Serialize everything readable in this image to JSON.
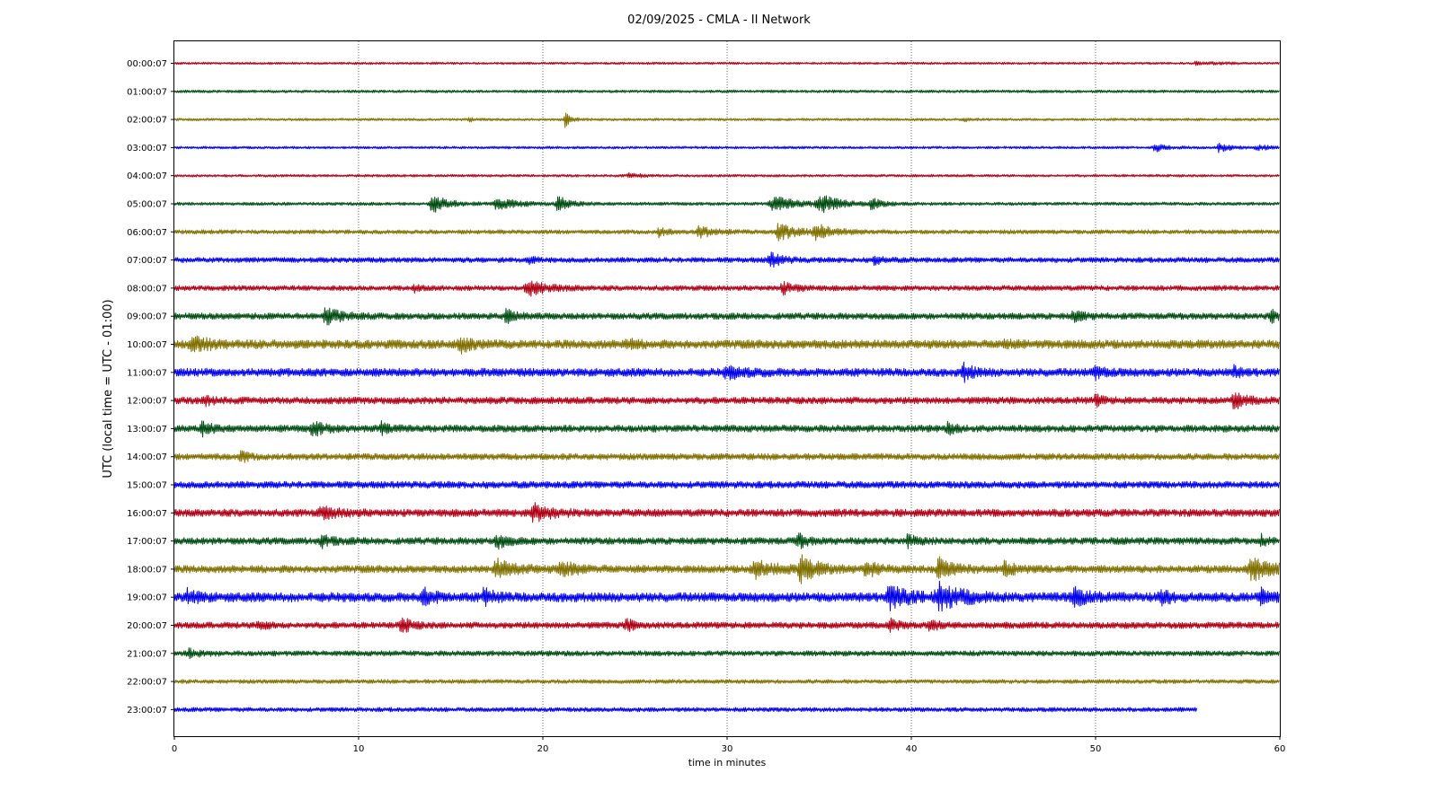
{
  "chart_data": {
    "type": "line",
    "title": "02/09/2025 - CMLA - II Network",
    "xlabel": "time in minutes",
    "ylabel": "UTC (local time = UTC - 01:00)",
    "xlim": [
      0,
      60
    ],
    "x_ticks": [
      0,
      10,
      20,
      30,
      40,
      50,
      60
    ],
    "vertical_gridlines_at": [
      10,
      20,
      30,
      40,
      50
    ],
    "grid_style": "dotted vertical",
    "trace_colors": [
      "#b00016",
      "#004d12",
      "#807000",
      "#0000ee"
    ],
    "rows": [
      {
        "label": "00:00:07",
        "end": 60,
        "noise": 0.2,
        "events": [
          {
            "t": 55.5,
            "amp": 0.25,
            "dur": 1.0
          }
        ]
      },
      {
        "label": "01:00:07",
        "end": 60,
        "noise": 0.24,
        "events": []
      },
      {
        "label": "02:00:07",
        "end": 60,
        "noise": 0.22,
        "events": [
          {
            "t": 21.2,
            "amp": 1.3,
            "dur": 0.3
          },
          {
            "t": 16.0,
            "amp": 0.3,
            "dur": 0.3
          },
          {
            "t": 42.8,
            "amp": 0.3,
            "dur": 0.3
          }
        ]
      },
      {
        "label": "03:00:07",
        "end": 60,
        "noise": 0.22,
        "events": [
          {
            "t": 53.2,
            "amp": 0.65,
            "dur": 0.6
          },
          {
            "t": 56.7,
            "amp": 0.7,
            "dur": 0.6
          },
          {
            "t": 58.8,
            "amp": 0.35,
            "dur": 0.8
          }
        ]
      },
      {
        "label": "04:00:07",
        "end": 60,
        "noise": 0.22,
        "events": [
          {
            "t": 24.7,
            "amp": 0.35,
            "dur": 0.7
          }
        ]
      },
      {
        "label": "05:00:07",
        "end": 60,
        "noise": 0.28,
        "events": [
          {
            "t": 14.0,
            "amp": 1.5,
            "dur": 0.8
          },
          {
            "t": 17.5,
            "amp": 1.0,
            "dur": 1.0
          },
          {
            "t": 20.8,
            "amp": 1.3,
            "dur": 0.6
          },
          {
            "t": 32.5,
            "amp": 1.2,
            "dur": 1.2
          },
          {
            "t": 35.0,
            "amp": 1.5,
            "dur": 1.0
          },
          {
            "t": 37.8,
            "amp": 0.9,
            "dur": 0.5
          }
        ]
      },
      {
        "label": "06:00:07",
        "end": 60,
        "noise": 0.36,
        "events": [
          {
            "t": 26.3,
            "amp": 0.8,
            "dur": 0.4
          },
          {
            "t": 28.5,
            "amp": 0.9,
            "dur": 0.8
          },
          {
            "t": 32.8,
            "amp": 1.6,
            "dur": 0.8
          },
          {
            "t": 34.8,
            "amp": 1.2,
            "dur": 0.9
          }
        ]
      },
      {
        "label": "07:00:07",
        "end": 60,
        "noise": 0.45,
        "events": [
          {
            "t": 19.2,
            "amp": 0.6,
            "dur": 0.4
          },
          {
            "t": 32.3,
            "amp": 1.2,
            "dur": 0.6
          },
          {
            "t": 38.0,
            "amp": 0.7,
            "dur": 0.4
          }
        ]
      },
      {
        "label": "08:00:07",
        "end": 60,
        "noise": 0.45,
        "events": [
          {
            "t": 19.2,
            "amp": 1.2,
            "dur": 1.0
          },
          {
            "t": 33.0,
            "amp": 0.9,
            "dur": 0.7
          },
          {
            "t": 13.0,
            "amp": 0.5,
            "dur": 0.3
          }
        ]
      },
      {
        "label": "09:00:07",
        "end": 60,
        "noise": 0.55,
        "events": [
          {
            "t": 8.2,
            "amp": 1.2,
            "dur": 0.8
          },
          {
            "t": 18.0,
            "amp": 1.0,
            "dur": 0.5
          },
          {
            "t": 48.8,
            "amp": 0.9,
            "dur": 0.5
          },
          {
            "t": 59.5,
            "amp": 1.2,
            "dur": 0.4
          }
        ]
      },
      {
        "label": "10:00:07",
        "end": 60,
        "noise": 0.75,
        "events": [
          {
            "t": 1.0,
            "amp": 0.9,
            "dur": 1.0
          },
          {
            "t": 15.5,
            "amp": 1.1,
            "dur": 0.6
          },
          {
            "t": 24.5,
            "amp": 0.9,
            "dur": 0.4
          },
          {
            "t": 45.0,
            "amp": 0.7,
            "dur": 0.3
          }
        ]
      },
      {
        "label": "11:00:07",
        "end": 60,
        "noise": 0.7,
        "events": [
          {
            "t": 42.8,
            "amp": 1.3,
            "dur": 0.5
          },
          {
            "t": 30.0,
            "amp": 0.8,
            "dur": 1.0
          },
          {
            "t": 50.0,
            "amp": 0.8,
            "dur": 0.6
          },
          {
            "t": 57.5,
            "amp": 0.8,
            "dur": 0.3
          }
        ]
      },
      {
        "label": "12:00:07",
        "end": 60,
        "noise": 0.6,
        "events": [
          {
            "t": 1.5,
            "amp": 0.8,
            "dur": 0.5
          },
          {
            "t": 57.5,
            "amp": 1.2,
            "dur": 0.6
          },
          {
            "t": 50.0,
            "amp": 0.8,
            "dur": 0.4
          }
        ]
      },
      {
        "label": "13:00:07",
        "end": 60,
        "noise": 0.6,
        "events": [
          {
            "t": 1.5,
            "amp": 1.0,
            "dur": 0.5
          },
          {
            "t": 7.5,
            "amp": 1.1,
            "dur": 0.6
          },
          {
            "t": 11.2,
            "amp": 1.0,
            "dur": 0.4
          },
          {
            "t": 42.0,
            "amp": 0.8,
            "dur": 0.4
          }
        ]
      },
      {
        "label": "14:00:07",
        "end": 60,
        "noise": 0.55,
        "events": [
          {
            "t": 3.6,
            "amp": 1.0,
            "dur": 0.3
          }
        ]
      },
      {
        "label": "15:00:07",
        "end": 60,
        "noise": 0.6,
        "events": []
      },
      {
        "label": "16:00:07",
        "end": 60,
        "noise": 0.65,
        "events": [
          {
            "t": 19.5,
            "amp": 1.4,
            "dur": 0.8
          },
          {
            "t": 8.0,
            "amp": 0.7,
            "dur": 1.0
          }
        ]
      },
      {
        "label": "17:00:07",
        "end": 60,
        "noise": 0.6,
        "events": [
          {
            "t": 8.0,
            "amp": 1.0,
            "dur": 0.5
          },
          {
            "t": 17.5,
            "amp": 1.0,
            "dur": 0.6
          },
          {
            "t": 33.8,
            "amp": 1.3,
            "dur": 0.4
          },
          {
            "t": 39.8,
            "amp": 0.9,
            "dur": 0.4
          },
          {
            "t": 59.0,
            "amp": 0.9,
            "dur": 0.3
          }
        ]
      },
      {
        "label": "18:00:07",
        "end": 60,
        "noise": 0.65,
        "events": [
          {
            "t": 17.5,
            "amp": 1.4,
            "dur": 1.0
          },
          {
            "t": 21.0,
            "amp": 1.0,
            "dur": 1.0
          },
          {
            "t": 31.5,
            "amp": 1.2,
            "dur": 1.2
          },
          {
            "t": 34.0,
            "amp": 2.1,
            "dur": 0.8
          },
          {
            "t": 37.5,
            "amp": 1.3,
            "dur": 0.6
          },
          {
            "t": 41.5,
            "amp": 1.6,
            "dur": 0.9
          },
          {
            "t": 45.0,
            "amp": 1.0,
            "dur": 0.6
          },
          {
            "t": 58.5,
            "amp": 1.6,
            "dur": 1.2
          }
        ]
      },
      {
        "label": "19:00:07",
        "end": 60,
        "noise": 0.8,
        "events": [
          {
            "t": 0.7,
            "amp": 1.2,
            "dur": 0.5
          },
          {
            "t": 13.5,
            "amp": 1.2,
            "dur": 0.6
          },
          {
            "t": 16.8,
            "amp": 1.2,
            "dur": 0.5
          },
          {
            "t": 38.8,
            "amp": 1.7,
            "dur": 1.0
          },
          {
            "t": 41.5,
            "amp": 2.0,
            "dur": 1.2
          },
          {
            "t": 48.8,
            "amp": 1.2,
            "dur": 0.8
          },
          {
            "t": 53.5,
            "amp": 1.2,
            "dur": 0.5
          },
          {
            "t": 59.0,
            "amp": 1.0,
            "dur": 0.5
          }
        ]
      },
      {
        "label": "20:00:07",
        "end": 60,
        "noise": 0.55,
        "events": [
          {
            "t": 4.5,
            "amp": 0.8,
            "dur": 0.4
          },
          {
            "t": 12.3,
            "amp": 1.3,
            "dur": 0.5
          },
          {
            "t": 24.5,
            "amp": 0.9,
            "dur": 0.5
          },
          {
            "t": 38.8,
            "amp": 0.9,
            "dur": 0.5
          },
          {
            "t": 41.0,
            "amp": 0.9,
            "dur": 0.4
          }
        ]
      },
      {
        "label": "21:00:07",
        "end": 60,
        "noise": 0.45,
        "events": [
          {
            "t": 0.8,
            "amp": 0.6,
            "dur": 0.6
          }
        ]
      },
      {
        "label": "22:00:07",
        "end": 60,
        "noise": 0.35,
        "events": []
      },
      {
        "label": "23:00:07",
        "end": 55.5,
        "noise": 0.38,
        "events": []
      }
    ]
  }
}
